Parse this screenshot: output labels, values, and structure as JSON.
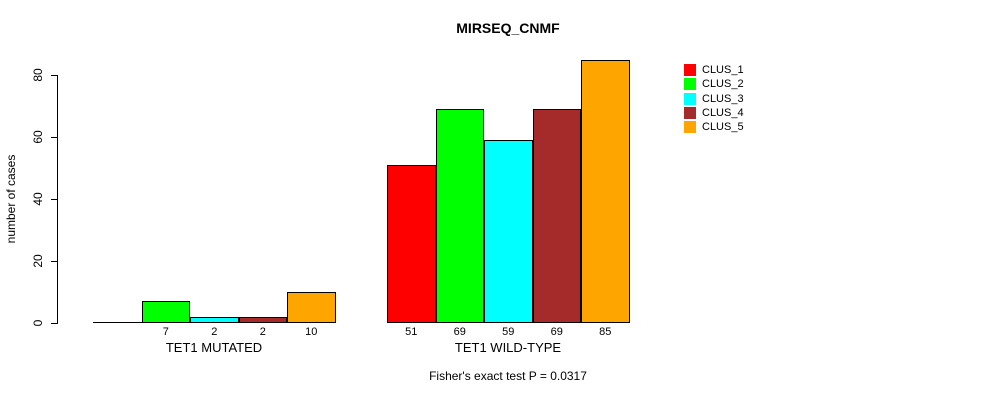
{
  "chart_data": {
    "type": "bar",
    "title": "MIRSEQ_CNMF",
    "ylabel": "number of cases",
    "xlabel": "",
    "ylim": [
      0,
      80
    ],
    "yticks": [
      0,
      20,
      40,
      60,
      80
    ],
    "grid": false,
    "legend_position": "right",
    "footnote": "Fisher's exact test P = 0.0317",
    "series": [
      {
        "name": "CLUS_1",
        "color": "#FF0000"
      },
      {
        "name": "CLUS_2",
        "color": "#00FF00"
      },
      {
        "name": "CLUS_3",
        "color": "#00FFFF"
      },
      {
        "name": "CLUS_4",
        "color": "#A52A2A"
      },
      {
        "name": "CLUS_5",
        "color": "#FFA500"
      }
    ],
    "groups": [
      {
        "label": "TET1 MUTATED",
        "values": [
          0,
          7,
          2,
          2,
          10
        ]
      },
      {
        "label": "TET1 WILD-TYPE",
        "values": [
          51,
          69,
          59,
          69,
          85
        ]
      }
    ],
    "bar_value_labels_shown": true,
    "zero_value_labels_hidden": true
  }
}
